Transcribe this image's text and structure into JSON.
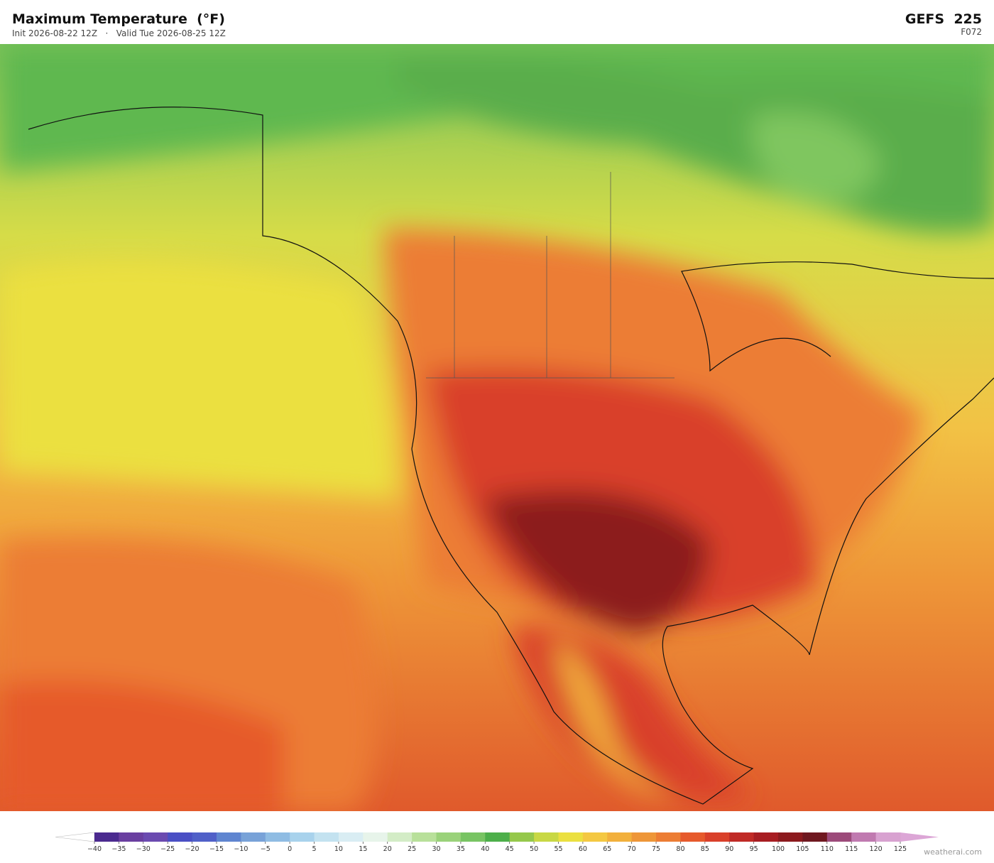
{
  "header": {
    "title": "Maximum Temperature  (°F)",
    "init": "Init 2026-08-22 12Z",
    "separator": "·",
    "valid": "Valid Tue 2026-08-25 12Z",
    "model": "GEFS  225",
    "forecast_hour": "F072"
  },
  "colorbar": {
    "ticks": [
      {
        "value": -40,
        "label": "−40"
      },
      {
        "value": -35,
        "label": "−35"
      },
      {
        "value": -30,
        "label": "−30"
      },
      {
        "value": -25,
        "label": "−25"
      },
      {
        "value": -20,
        "label": "−20"
      },
      {
        "value": -15,
        "label": "−15"
      },
      {
        "value": -10,
        "label": "−10"
      },
      {
        "value": -5,
        "label": "−5"
      },
      0,
      5,
      10,
      15,
      20,
      25,
      30,
      35,
      40,
      45,
      50,
      55,
      60,
      65,
      70,
      75,
      80,
      85,
      90,
      95,
      100,
      105,
      110,
      115,
      120,
      125
    ],
    "colors": [
      "#4b2a8f",
      "#6a3fa0",
      "#6b4ab0",
      "#4a4fc4",
      "#5060c8",
      "#5f85d0",
      "#78a2d8",
      "#8fbce3",
      "#a8d2ec",
      "#c3e2f0",
      "#d9edf3",
      "#e7f4ea",
      "#d3ecc6",
      "#b8e09a",
      "#9ad27a",
      "#78c463",
      "#4daf4a",
      "#95c84b",
      "#c8d844",
      "#ebe040",
      "#f4c842",
      "#f2b03c",
      "#ee9638",
      "#ec7d34",
      "#e65a2c",
      "#d9402a",
      "#c02a26",
      "#a71d22",
      "#8c1a1e",
      "#6f1820",
      "#9c4a7a",
      "#c07ab0",
      "#d8a2d0"
    ],
    "under_color": "#ffffff",
    "over_color": "#dca6d6"
  },
  "footer": {
    "credit": "weatherai.com"
  }
}
